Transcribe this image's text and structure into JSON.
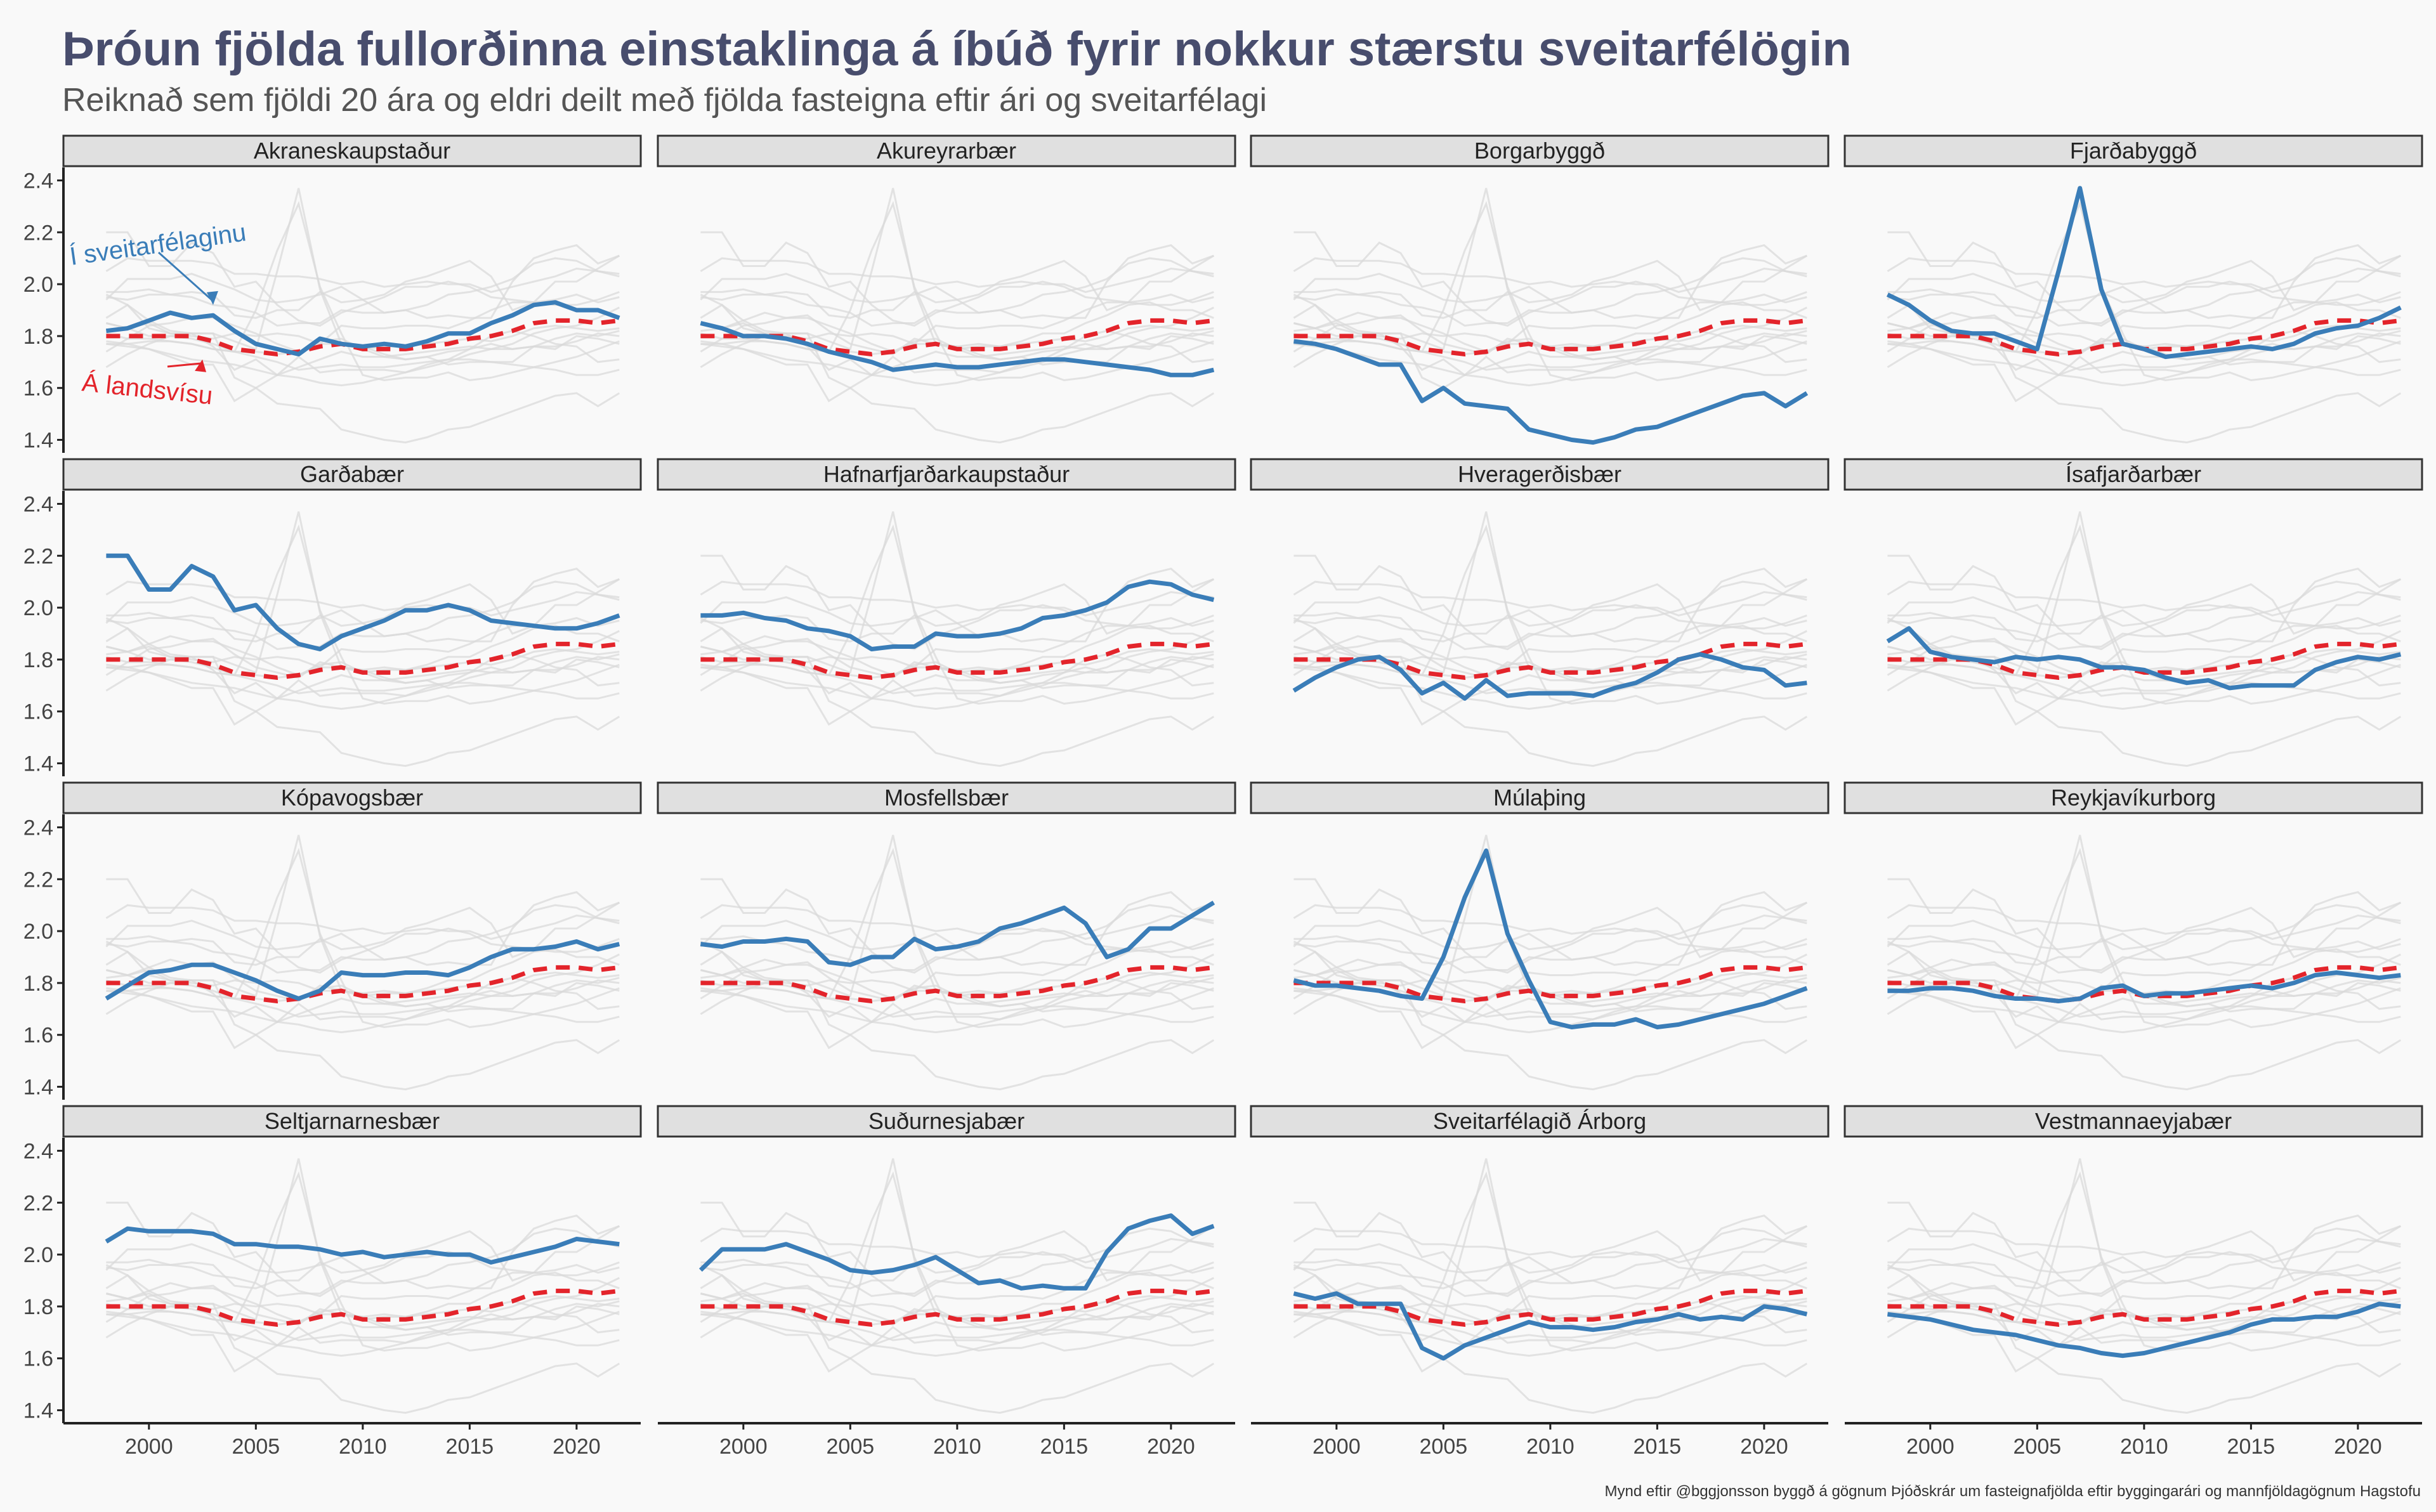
{
  "title": "Þróun fjölda fullorðinna einstaklinga á íbúð fyrir nokkur stærstu sveitarfélögin",
  "subtitle": "Reiknað sem fjöldi 20 ára og eldri deilt með fjölda fasteigna eftir ári og sveitarfélagi",
  "caption": "Mynd eftir @bggjonsson byggð á gögnum Þjóðskrár um fasteignafjölda eftir byggingarári og mannfjöldagögnum Hagstofu",
  "colors": {
    "local": "#3A7DB8",
    "national": "#E3242B",
    "background": "#D9D9D9",
    "strip": "#E0E0E0"
  },
  "chart_data": {
    "type": "line",
    "layout": "facet-grid 4x4, shared axes",
    "x": [
      1998,
      1999,
      2000,
      2001,
      2002,
      2003,
      2004,
      2005,
      2006,
      2007,
      2008,
      2009,
      2010,
      2011,
      2012,
      2013,
      2014,
      2015,
      2016,
      2017,
      2018,
      2019,
      2020,
      2021,
      2022
    ],
    "xlim": [
      1996,
      2023
    ],
    "ylim": [
      1.35,
      2.45
    ],
    "xticks": [
      2000,
      2005,
      2010,
      2015,
      2020
    ],
    "yticks": [
      1.4,
      1.6,
      1.8,
      2.0,
      2.2,
      2.4
    ],
    "grid": false,
    "annotations": [
      {
        "text": "Í sveitarfélaginu",
        "panel": "Akraneskaupstaður",
        "series": "local",
        "color": "#3A7DB8"
      },
      {
        "text": "Á landsvísu",
        "panel": "Akraneskaupstaður",
        "series": "national",
        "color": "#E3242B"
      }
    ],
    "national": [
      1.8,
      1.8,
      1.8,
      1.8,
      1.8,
      1.78,
      1.75,
      1.74,
      1.73,
      1.74,
      1.76,
      1.77,
      1.75,
      1.75,
      1.75,
      1.76,
      1.77,
      1.79,
      1.8,
      1.82,
      1.85,
      1.86,
      1.86,
      1.85,
      1.86
    ],
    "series": [
      {
        "name": "Akraneskaupstaður",
        "values": [
          1.82,
          1.83,
          1.86,
          1.89,
          1.87,
          1.88,
          1.82,
          1.77,
          1.75,
          1.73,
          1.79,
          1.77,
          1.76,
          1.77,
          1.76,
          1.78,
          1.81,
          1.81,
          1.85,
          1.88,
          1.92,
          1.93,
          1.9,
          1.9,
          1.87
        ]
      },
      {
        "name": "Akureyrarbær",
        "values": [
          1.85,
          1.83,
          1.8,
          1.8,
          1.79,
          1.77,
          1.74,
          1.72,
          1.7,
          1.67,
          1.68,
          1.69,
          1.68,
          1.68,
          1.69,
          1.7,
          1.71,
          1.71,
          1.7,
          1.69,
          1.68,
          1.67,
          1.65,
          1.65,
          1.67
        ]
      },
      {
        "name": "Borgarbyggð",
        "values": [
          1.78,
          1.77,
          1.75,
          1.72,
          1.69,
          1.69,
          1.55,
          1.6,
          1.54,
          1.53,
          1.52,
          1.44,
          1.42,
          1.4,
          1.39,
          1.41,
          1.44,
          1.45,
          1.48,
          1.51,
          1.54,
          1.57,
          1.58,
          1.53,
          1.58
        ]
      },
      {
        "name": "Fjarðabyggð",
        "values": [
          1.96,
          1.92,
          1.86,
          1.82,
          1.81,
          1.81,
          1.78,
          1.75,
          2.05,
          2.37,
          1.98,
          1.77,
          1.75,
          1.72,
          1.73,
          1.74,
          1.75,
          1.76,
          1.75,
          1.77,
          1.81,
          1.83,
          1.84,
          1.87,
          1.91
        ]
      },
      {
        "name": "Garðabær",
        "values": [
          2.2,
          2.2,
          2.07,
          2.07,
          2.16,
          2.12,
          1.99,
          2.01,
          1.92,
          1.86,
          1.84,
          1.89,
          1.92,
          1.95,
          1.99,
          1.99,
          2.01,
          1.99,
          1.95,
          1.94,
          1.93,
          1.92,
          1.92,
          1.94,
          1.97
        ]
      },
      {
        "name": "Hafnarfjarðarkaupstaður",
        "values": [
          1.97,
          1.97,
          1.98,
          1.96,
          1.95,
          1.92,
          1.91,
          1.89,
          1.84,
          1.85,
          1.85,
          1.9,
          1.89,
          1.89,
          1.9,
          1.92,
          1.96,
          1.97,
          1.99,
          2.02,
          2.08,
          2.1,
          2.09,
          2.05,
          2.03
        ]
      },
      {
        "name": "Hveragerðisbær",
        "values": [
          1.68,
          1.73,
          1.77,
          1.8,
          1.81,
          1.76,
          1.67,
          1.71,
          1.65,
          1.72,
          1.66,
          1.67,
          1.67,
          1.67,
          1.66,
          1.69,
          1.71,
          1.75,
          1.8,
          1.82,
          1.8,
          1.77,
          1.76,
          1.7,
          1.71
        ]
      },
      {
        "name": "Ísafjarðarbær",
        "values": [
          1.87,
          1.92,
          1.83,
          1.81,
          1.8,
          1.79,
          1.81,
          1.8,
          1.81,
          1.8,
          1.77,
          1.77,
          1.76,
          1.73,
          1.71,
          1.72,
          1.69,
          1.7,
          1.7,
          1.7,
          1.76,
          1.79,
          1.81,
          1.8,
          1.82
        ]
      },
      {
        "name": "Kópavogsbær",
        "values": [
          1.74,
          1.79,
          1.84,
          1.85,
          1.87,
          1.87,
          1.84,
          1.81,
          1.77,
          1.74,
          1.77,
          1.84,
          1.83,
          1.83,
          1.84,
          1.84,
          1.83,
          1.86,
          1.9,
          1.93,
          1.93,
          1.94,
          1.96,
          1.93,
          1.95
        ]
      },
      {
        "name": "Mosfellsbær",
        "values": [
          1.95,
          1.94,
          1.96,
          1.96,
          1.97,
          1.96,
          1.88,
          1.87,
          1.9,
          1.9,
          1.97,
          1.93,
          1.94,
          1.96,
          2.01,
          2.03,
          2.06,
          2.09,
          2.03,
          1.9,
          1.93,
          2.01,
          2.01,
          2.06,
          2.11
        ]
      },
      {
        "name": "Múlaþing",
        "values": [
          1.81,
          1.79,
          1.79,
          1.78,
          1.77,
          1.75,
          1.74,
          1.9,
          2.13,
          2.31,
          1.99,
          1.81,
          1.65,
          1.63,
          1.64,
          1.64,
          1.66,
          1.63,
          1.64,
          1.66,
          1.68,
          1.7,
          1.72,
          1.75,
          1.78
        ]
      },
      {
        "name": "Reykjavíkurborg",
        "values": [
          1.77,
          1.77,
          1.78,
          1.78,
          1.77,
          1.75,
          1.74,
          1.74,
          1.73,
          1.74,
          1.78,
          1.79,
          1.75,
          1.76,
          1.76,
          1.77,
          1.78,
          1.79,
          1.78,
          1.8,
          1.83,
          1.84,
          1.83,
          1.82,
          1.83
        ]
      },
      {
        "name": "Seltjarnarnesbær",
        "values": [
          2.05,
          2.1,
          2.09,
          2.09,
          2.09,
          2.08,
          2.04,
          2.04,
          2.03,
          2.03,
          2.02,
          2.0,
          2.01,
          1.99,
          2.0,
          2.01,
          2.0,
          2.0,
          1.97,
          1.99,
          2.01,
          2.03,
          2.06,
          2.05,
          2.04
        ]
      },
      {
        "name": "Suðurnesjabær",
        "values": [
          1.94,
          2.02,
          2.02,
          2.02,
          2.04,
          2.01,
          1.98,
          1.94,
          1.93,
          1.94,
          1.96,
          1.99,
          1.94,
          1.89,
          1.9,
          1.87,
          1.88,
          1.87,
          1.87,
          2.01,
          2.1,
          2.13,
          2.15,
          2.08,
          2.11
        ]
      },
      {
        "name": "Sveitarfélagið Árborg",
        "values": [
          1.85,
          1.83,
          1.85,
          1.81,
          1.81,
          1.81,
          1.64,
          1.6,
          1.65,
          1.68,
          1.71,
          1.74,
          1.72,
          1.72,
          1.71,
          1.72,
          1.74,
          1.75,
          1.77,
          1.75,
          1.76,
          1.75,
          1.8,
          1.79,
          1.77
        ]
      },
      {
        "name": "Vestmannaeyjabær",
        "values": [
          1.77,
          1.76,
          1.75,
          1.73,
          1.71,
          1.7,
          1.69,
          1.67,
          1.65,
          1.64,
          1.62,
          1.61,
          1.62,
          1.64,
          1.66,
          1.68,
          1.7,
          1.73,
          1.75,
          1.75,
          1.76,
          1.76,
          1.78,
          1.81,
          1.8
        ]
      }
    ]
  }
}
